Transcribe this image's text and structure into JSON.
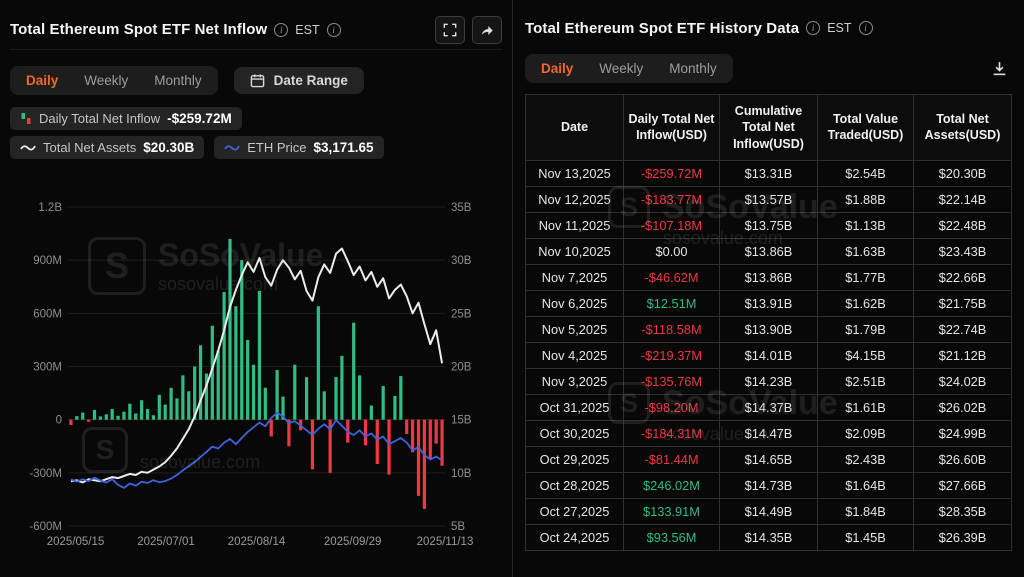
{
  "colors": {
    "accent_orange": "#f2682a",
    "positive_green": "#2ebd85",
    "negative_red": "#f23645",
    "eth_blue": "#3e63dd",
    "assets_white": "#ececec"
  },
  "watermark": {
    "brand": "SoSoValue",
    "domain": "sosovalue.com"
  },
  "left_panel": {
    "title": "Total Ethereum Spot ETF Net Inflow",
    "est_label": "EST",
    "tabs": [
      {
        "label": "Daily",
        "active": true
      },
      {
        "label": "Weekly",
        "active": false
      },
      {
        "label": "Monthly",
        "active": false
      }
    ],
    "date_range_label": "Date Range",
    "legend": [
      {
        "label": "Daily Total Net Inflow",
        "value": "-$259.72M"
      },
      {
        "label": "Total Net Assets",
        "value": "$20.30B"
      },
      {
        "label": "ETH Price",
        "value": "$3,171.65"
      }
    ]
  },
  "chart_data": {
    "type": "bar",
    "title": "Total Ethereum Spot ETF Net Inflow",
    "x_tick_labels": [
      "2025/05/15",
      "2025/07/01",
      "2025/08/14",
      "2025/09/29",
      "2025/11/13"
    ],
    "x_tick_pos": [
      0.02,
      0.26,
      0.5,
      0.755,
      1
    ],
    "left_axis": {
      "ticks": [
        "1.2B",
        "900M",
        "600M",
        "300M",
        "0",
        "-300M",
        "-600M"
      ],
      "min": -600,
      "max": 1200,
      "unit": "USD M"
    },
    "right_axis": {
      "ticks": [
        "35B",
        "30B",
        "25B",
        "20B",
        "15B",
        "10B",
        "5B"
      ],
      "min": 5,
      "max": 35,
      "unit": "USD B"
    },
    "grid": true,
    "series": [
      {
        "name": "Daily Total Net Inflow",
        "type": "bar",
        "axis": "left",
        "unit": "USD M",
        "pos_color": "#2ebd85",
        "neg_color": "#f23645",
        "values": [
          -30,
          20,
          40,
          -12,
          55,
          18,
          30,
          60,
          22,
          45,
          90,
          35,
          110,
          60,
          25,
          140,
          85,
          180,
          120,
          250,
          160,
          300,
          420,
          260,
          530,
          390,
          720,
          1020,
          640,
          900,
          450,
          310,
          726,
          180,
          -95,
          280,
          130,
          -150,
          310,
          -60,
          240,
          -280,
          640,
          160,
          -300,
          241,
          360,
          -130,
          547,
          250,
          -145,
          80,
          -250,
          190,
          -310,
          134,
          246,
          -81,
          -184,
          -430,
          -504,
          -219,
          -135,
          -260
        ]
      },
      {
        "name": "Total Net Assets",
        "type": "line",
        "axis": "right",
        "unit": "USD B",
        "color": "#ececec",
        "values": [
          9.2,
          9.3,
          9.1,
          9.4,
          9.3,
          9.2,
          9.4,
          9.6,
          9.5,
          9.7,
          9.9,
          9.8,
          10.1,
          10.0,
          10.3,
          10.6,
          11.0,
          11.6,
          12.3,
          13.2,
          14.1,
          15.3,
          16.8,
          18.2,
          19.8,
          21.5,
          23.4,
          25.6,
          27.2,
          28.6,
          29.8,
          28.9,
          30.2,
          28.4,
          27.6,
          29.1,
          30.0,
          29.3,
          28.2,
          29.0,
          27.1,
          26.2,
          28.4,
          29.6,
          28.8,
          30.6,
          31.1,
          29.9,
          28.6,
          29.4,
          28.1,
          28.9,
          27.5,
          28.3,
          26.4,
          27.2,
          27.7,
          26.6,
          25.0,
          26.0,
          24.0,
          22.1,
          23.4,
          20.3
        ]
      },
      {
        "name": "ETH Price",
        "type": "line",
        "axis": "price",
        "unit": "USD",
        "color": "#3e63dd",
        "axis_min": 1040,
        "axis_max": 11410,
        "values": [
          2550,
          2480,
          2560,
          2500,
          2610,
          2520,
          2450,
          2560,
          2380,
          2280,
          2420,
          2350,
          2480,
          2440,
          2530,
          2460,
          2500,
          2580,
          2700,
          2850,
          2980,
          3120,
          3280,
          3450,
          3620,
          3560,
          3750,
          3870,
          3700,
          3900,
          4100,
          4250,
          4400,
          4280,
          4550,
          4720,
          4600,
          4380,
          4450,
          4300,
          4150,
          4000,
          4200,
          4350,
          4180,
          4480,
          4300,
          4100,
          4000,
          4150,
          3950,
          4050,
          3850,
          3950,
          3700,
          3800,
          3900,
          3750,
          3500,
          3600,
          3350,
          3200,
          3300,
          3172
        ]
      }
    ]
  },
  "right_panel": {
    "title": "Total Ethereum Spot ETF History Data",
    "est_label": "EST",
    "tabs": [
      {
        "label": "Daily",
        "active": true
      },
      {
        "label": "Weekly",
        "active": false
      },
      {
        "label": "Monthly",
        "active": false
      }
    ],
    "table": {
      "columns": [
        "Date",
        "Daily Total Net Inflow(USD)",
        "Cumulative Total Net Inflow(USD)",
        "Total Value Traded(USD)",
        "Total Net Assets(USD)"
      ],
      "rows": [
        [
          "Nov 13,2025",
          "-$259.72M",
          "$13.31B",
          "$2.54B",
          "$20.30B"
        ],
        [
          "Nov 12,2025",
          "-$183.77M",
          "$13.57B",
          "$1.88B",
          "$22.14B"
        ],
        [
          "Nov 11,2025",
          "-$107.18M",
          "$13.75B",
          "$1.13B",
          "$22.48B"
        ],
        [
          "Nov 10,2025",
          "$0.00",
          "$13.86B",
          "$1.63B",
          "$23.43B"
        ],
        [
          "Nov 7,2025",
          "-$46.62M",
          "$13.86B",
          "$1.77B",
          "$22.66B"
        ],
        [
          "Nov 6,2025",
          "$12.51M",
          "$13.91B",
          "$1.62B",
          "$21.75B"
        ],
        [
          "Nov 5,2025",
          "-$118.58M",
          "$13.90B",
          "$1.79B",
          "$22.74B"
        ],
        [
          "Nov 4,2025",
          "-$219.37M",
          "$14.01B",
          "$4.15B",
          "$21.12B"
        ],
        [
          "Nov 3,2025",
          "-$135.76M",
          "$14.23B",
          "$2.51B",
          "$24.02B"
        ],
        [
          "Oct 31,2025",
          "-$98.20M",
          "$14.37B",
          "$1.61B",
          "$26.02B"
        ],
        [
          "Oct 30,2025",
          "-$184.31M",
          "$14.47B",
          "$2.09B",
          "$24.99B"
        ],
        [
          "Oct 29,2025",
          "-$81.44M",
          "$14.65B",
          "$2.43B",
          "$26.60B"
        ],
        [
          "Oct 28,2025",
          "$246.02M",
          "$14.73B",
          "$1.64B",
          "$27.66B"
        ],
        [
          "Oct 27,2025",
          "$133.91M",
          "$14.49B",
          "$1.84B",
          "$28.35B"
        ],
        [
          "Oct 24,2025",
          "$93.56M",
          "$14.35B",
          "$1.45B",
          "$26.39B"
        ]
      ]
    }
  }
}
